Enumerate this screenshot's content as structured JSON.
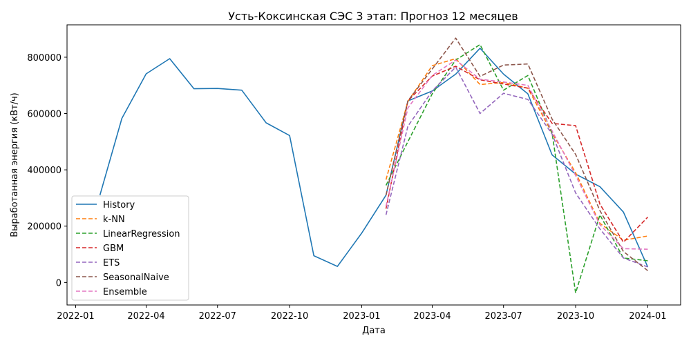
{
  "chart_data": {
    "type": "line",
    "title": "Усть-Коксинская СЭС 3 этап: Прогноз 12 месяцев",
    "xlabel": "Дата",
    "ylabel": "Выработанная энергия (кВт/ч)",
    "xlim": [
      "2021-12-21",
      "2024-02-12"
    ],
    "ylim": [
      -80000,
      915000
    ],
    "x_ticks": [
      "2022-01-01",
      "2022-04-01",
      "2022-07-01",
      "2022-10-01",
      "2023-01-01",
      "2023-04-01",
      "2023-07-01",
      "2023-10-01",
      "2024-01-01"
    ],
    "x_tick_labels": [
      "2022-01",
      "2022-04",
      "2022-07",
      "2022-10",
      "2023-01",
      "2023-04",
      "2023-07",
      "2023-10",
      "2024-01"
    ],
    "y_ticks": [
      0,
      200000,
      400000,
      600000,
      800000
    ],
    "y_tick_labels": [
      "0",
      "200000",
      "400000",
      "600000",
      "800000"
    ],
    "legend_position": "lower-left",
    "grid": false,
    "series": [
      {
        "name": "History",
        "color": "#1f77b4",
        "dash": "solid",
        "x": [
          "2022-02-01",
          "2022-03-01",
          "2022-04-01",
          "2022-05-01",
          "2022-06-01",
          "2022-07-01",
          "2022-08-01",
          "2022-09-01",
          "2022-10-01",
          "2022-11-01",
          "2022-12-01",
          "2023-01-01",
          "2023-02-01",
          "2023-03-01",
          "2023-04-01",
          "2023-05-01",
          "2023-06-01",
          "2023-07-01",
          "2023-08-01",
          "2023-09-01",
          "2023-10-01",
          "2023-11-01",
          "2023-12-01",
          "2024-01-01"
        ],
        "y": [
          310000,
          583000,
          741000,
          795000,
          688000,
          689000,
          683000,
          567000,
          522000,
          95000,
          57000,
          175000,
          310000,
          645000,
          680000,
          740000,
          832000,
          740000,
          670000,
          453000,
          385000,
          340000,
          250000,
          55000
        ]
      },
      {
        "name": "k-NN",
        "color": "#ff7f0e",
        "dash": "dashed",
        "x": [
          "2023-02-01",
          "2023-03-01",
          "2023-04-01",
          "2023-05-01",
          "2023-06-01",
          "2023-07-01",
          "2023-08-01",
          "2023-09-01",
          "2023-10-01",
          "2023-11-01",
          "2023-12-01",
          "2024-01-01"
        ],
        "y": [
          365000,
          643000,
          770000,
          795000,
          703000,
          710000,
          690000,
          530000,
          390000,
          210000,
          150000,
          165000
        ]
      },
      {
        "name": "LinearRegression",
        "color": "#2ca02c",
        "dash": "dashed",
        "x": [
          "2023-02-01",
          "2023-03-01",
          "2023-04-01",
          "2023-05-01",
          "2023-06-01",
          "2023-07-01",
          "2023-08-01",
          "2023-09-01",
          "2023-10-01",
          "2023-11-01",
          "2023-12-01",
          "2024-01-01"
        ],
        "y": [
          345000,
          500000,
          670000,
          790000,
          845000,
          683000,
          735000,
          530000,
          -37000,
          240000,
          87000,
          77000
        ]
      },
      {
        "name": "GBM",
        "color": "#d62728",
        "dash": "dashed",
        "x": [
          "2023-02-01",
          "2023-03-01",
          "2023-04-01",
          "2023-05-01",
          "2023-06-01",
          "2023-07-01",
          "2023-08-01",
          "2023-09-01",
          "2023-10-01",
          "2023-11-01",
          "2023-12-01",
          "2024-01-01"
        ],
        "y": [
          262000,
          645000,
          733000,
          768000,
          720000,
          705000,
          690000,
          565000,
          557000,
          278000,
          143000,
          232000
        ]
      },
      {
        "name": "ETS",
        "color": "#9467bd",
        "dash": "dashed",
        "x": [
          "2023-02-01",
          "2023-03-01",
          "2023-04-01",
          "2023-05-01",
          "2023-06-01",
          "2023-07-01",
          "2023-08-01",
          "2023-09-01",
          "2023-10-01",
          "2023-11-01",
          "2023-12-01",
          "2024-01-01"
        ],
        "y": [
          240000,
          555000,
          680000,
          765000,
          600000,
          672000,
          650000,
          527000,
          318000,
          190000,
          87000,
          55000
        ]
      },
      {
        "name": "SeasonalNaive",
        "color": "#8c564b",
        "dash": "dashed",
        "x": [
          "2023-02-01",
          "2023-03-01",
          "2023-04-01",
          "2023-05-01",
          "2023-06-01",
          "2023-07-01",
          "2023-08-01",
          "2023-09-01",
          "2023-10-01",
          "2023-11-01",
          "2023-12-01",
          "2024-01-01"
        ],
        "y": [
          310000,
          645000,
          758000,
          868000,
          732000,
          772000,
          776000,
          580000,
          455000,
          255000,
          110000,
          42000
        ]
      },
      {
        "name": "Ensemble",
        "color": "#e377c2",
        "dash": "dashed",
        "x": [
          "2023-02-01",
          "2023-03-01",
          "2023-04-01",
          "2023-05-01",
          "2023-06-01",
          "2023-07-01",
          "2023-08-01",
          "2023-09-01",
          "2023-10-01",
          "2023-11-01",
          "2023-12-01",
          "2024-01-01"
        ],
        "y": [
          270000,
          620000,
          735000,
          790000,
          722000,
          712000,
          700000,
          538000,
          380000,
          205000,
          120000,
          118000
        ]
      }
    ]
  }
}
